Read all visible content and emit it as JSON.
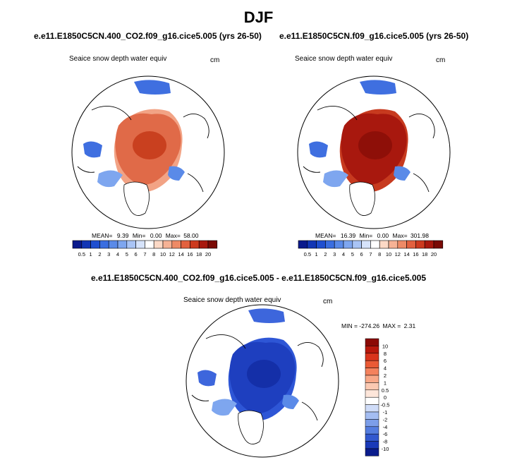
{
  "title": "DJF",
  "chart_data": [
    {
      "type": "heatmap",
      "title": "e.e11.E1850C5CN.400_CO2.f09_g16.cice5.005 (yrs 26-50)",
      "variable": "Seaice snow depth water equiv",
      "units": "cm",
      "stats": {
        "mean_label": "MEAN=",
        "mean": "9.39",
        "min_label": "Min=",
        "min": "0.00",
        "max_label": "Max=",
        "max": "58.00"
      },
      "colorbar_labels": [
        "0.5",
        "1",
        "2",
        "3",
        "4",
        "5",
        "6",
        "7",
        "8",
        "10",
        "12",
        "14",
        "16",
        "18",
        "20"
      ],
      "colorbar_colors": [
        "#0a1a8c",
        "#1236b5",
        "#1f4fd0",
        "#3a6ee0",
        "#5a8ae8",
        "#7ea6ef",
        "#a9c4f5",
        "#d6e3fa",
        "#ffffff",
        "#fcd9c6",
        "#f6b295",
        "#ee8a66",
        "#e2613f",
        "#cc3a1f",
        "#a8180e",
        "#7a0a05"
      ]
    },
    {
      "type": "heatmap",
      "title": "e.e11.E1850C5CN.f09_g16.cice5.005 (yrs 26-50)",
      "variable": "Seaice snow depth water equiv",
      "units": "cm",
      "stats": {
        "mean_label": "MEAN=",
        "mean": "16.39",
        "min_label": "Min=",
        "min": "0.00",
        "max_label": "Max=",
        "max": "301.98"
      },
      "colorbar_labels": [
        "0.5",
        "1",
        "2",
        "3",
        "4",
        "5",
        "6",
        "7",
        "8",
        "10",
        "12",
        "14",
        "16",
        "18",
        "20"
      ],
      "colorbar_colors": [
        "#0a1a8c",
        "#1236b5",
        "#1f4fd0",
        "#3a6ee0",
        "#5a8ae8",
        "#7ea6ef",
        "#a9c4f5",
        "#d6e3fa",
        "#ffffff",
        "#fcd9c6",
        "#f6b295",
        "#ee8a66",
        "#e2613f",
        "#cc3a1f",
        "#a8180e",
        "#7a0a05"
      ]
    },
    {
      "type": "heatmap",
      "title": "e.e11.E1850C5CN.400_CO2.f09_g16.cice5.005 - e.e11.E1850C5CN.f09_g16.cice5.005",
      "variable": "Seaice snow depth water equiv",
      "units": "cm",
      "stats": {
        "min_label": "MIN =",
        "min": "-274.26",
        "max_label": "MAX =",
        "max": "2.31"
      },
      "colorbar_labels": [
        "10",
        "8",
        "6",
        "4",
        "2",
        "1",
        "0.5",
        "0",
        "-0.5",
        "-1",
        "-2",
        "-4",
        "-6",
        "-8",
        "-10"
      ],
      "colorbar_colors": [
        "#8b0a05",
        "#b8180c",
        "#d9341c",
        "#ea5a35",
        "#f4825d",
        "#f8a888",
        "#fbc9b2",
        "#fde6da",
        "#ffffff",
        "#cfdcf8",
        "#a4bdf2",
        "#7c9ee9",
        "#547ddf",
        "#3158cf",
        "#1a3ab8",
        "#0a1c8c"
      ]
    }
  ]
}
